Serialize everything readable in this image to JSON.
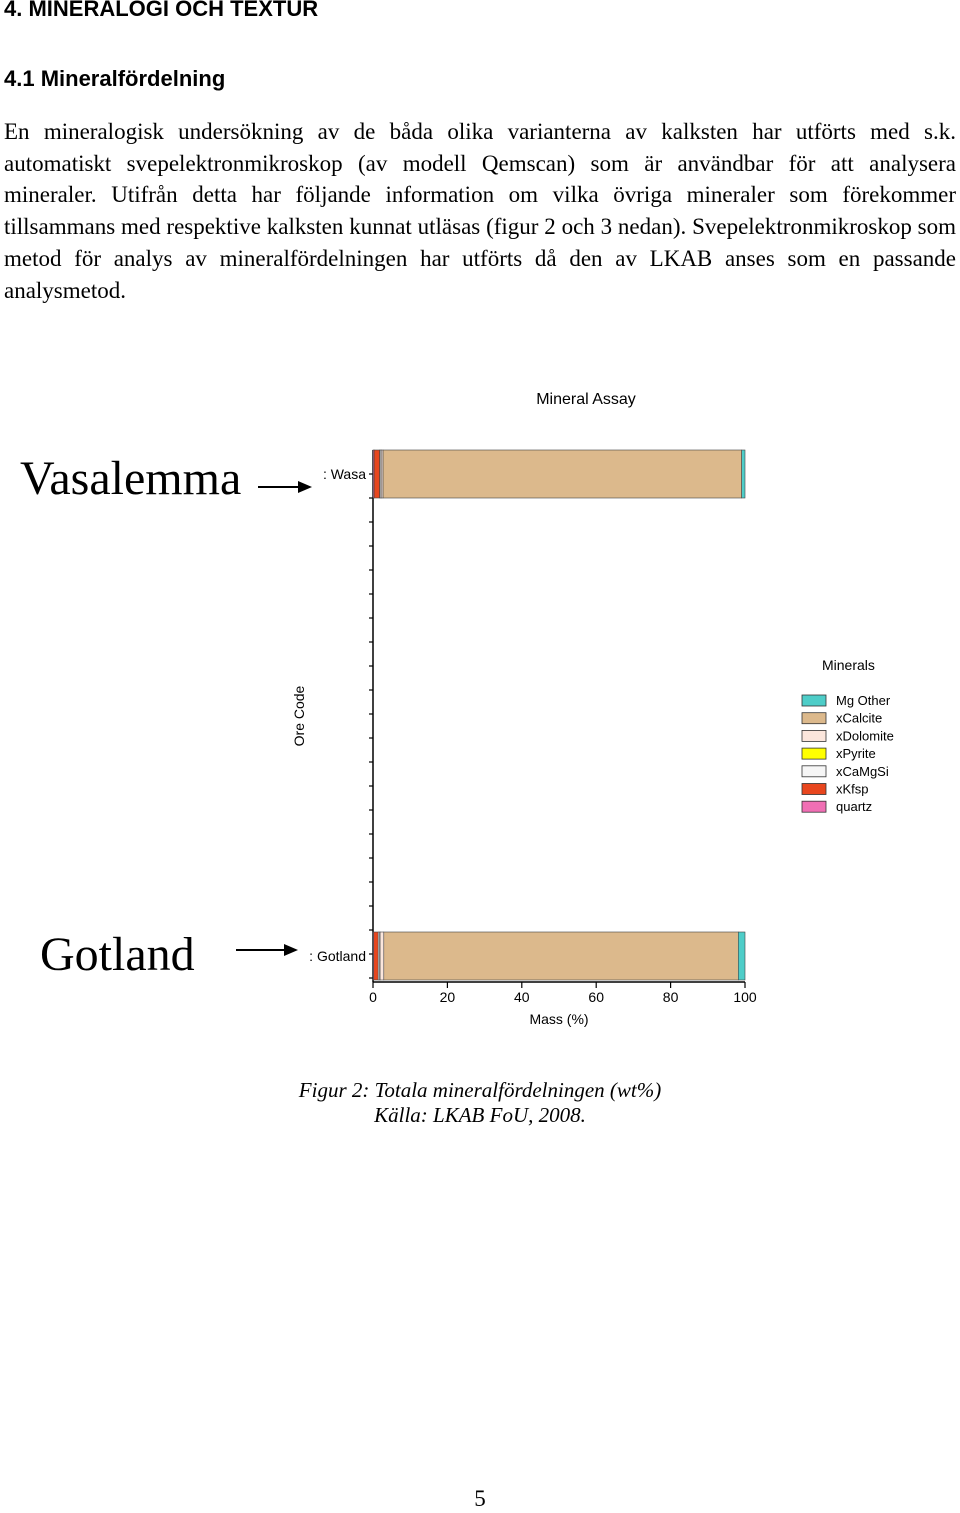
{
  "heading": "4. MINERALOGI OCH TEXTUR",
  "subheading": "4.1 Mineralfördelning",
  "paragraph": "En mineralogisk undersökning av de båda olika varianterna av kalksten har utförts med s.k. automatiskt svepelektronmikroskop (av modell Qemscan) som är användbar för att analysera mineraler. Utifrån detta har följande information om vilka övriga mineraler som förekommer tillsammans med respektive kalksten kunnat utläsas (figur 2 och 3 nedan). Svepelektronmikroskop som metod för analys av mineralfördelningen har utförts då den av LKAB anses som en passande analysmetod.",
  "annotations": {
    "top": "Vasalemma",
    "bottom": "Gotland"
  },
  "chart_data": {
    "type": "bar",
    "orientation": "horizontal",
    "stacked": true,
    "title": "Mineral Assay",
    "xlabel": "Mass (%)",
    "ylabel": "Ore Code",
    "xlim": [
      0,
      100
    ],
    "xticks": [
      0,
      20,
      40,
      60,
      80,
      100
    ],
    "categories": [
      ": Wasa",
      ": Gotland"
    ],
    "legend_title": "Minerals",
    "legend_position": "right",
    "series": [
      {
        "name": "quartz",
        "color": "#f06fb4",
        "values": [
          0.3,
          0.2
        ]
      },
      {
        "name": "xKfsp",
        "color": "#e8461e",
        "values": [
          1.5,
          1.2
        ]
      },
      {
        "name": "xCaMgSi",
        "color": "#f6f6f6",
        "values": [
          0.3,
          0.4
        ]
      },
      {
        "name": "xPyrite",
        "color": "#ffff00",
        "values": [
          0.1,
          0.1
        ]
      },
      {
        "name": "xDolomite",
        "color": "#fbe6dc",
        "values": [
          0.5,
          1.0
        ]
      },
      {
        "name": "xCalcite",
        "color": "#dcb98c",
        "values": [
          96.4,
          95.3
        ]
      },
      {
        "name": "Mg   Other",
        "color": "#4ecdc8",
        "values": [
          0.9,
          1.8
        ]
      }
    ]
  },
  "caption_line1": "Figur 2: Totala mineralfördelningen (wt%)",
  "caption_line2": "Källa: LKAB FoU, 2008.",
  "page_number": "5"
}
